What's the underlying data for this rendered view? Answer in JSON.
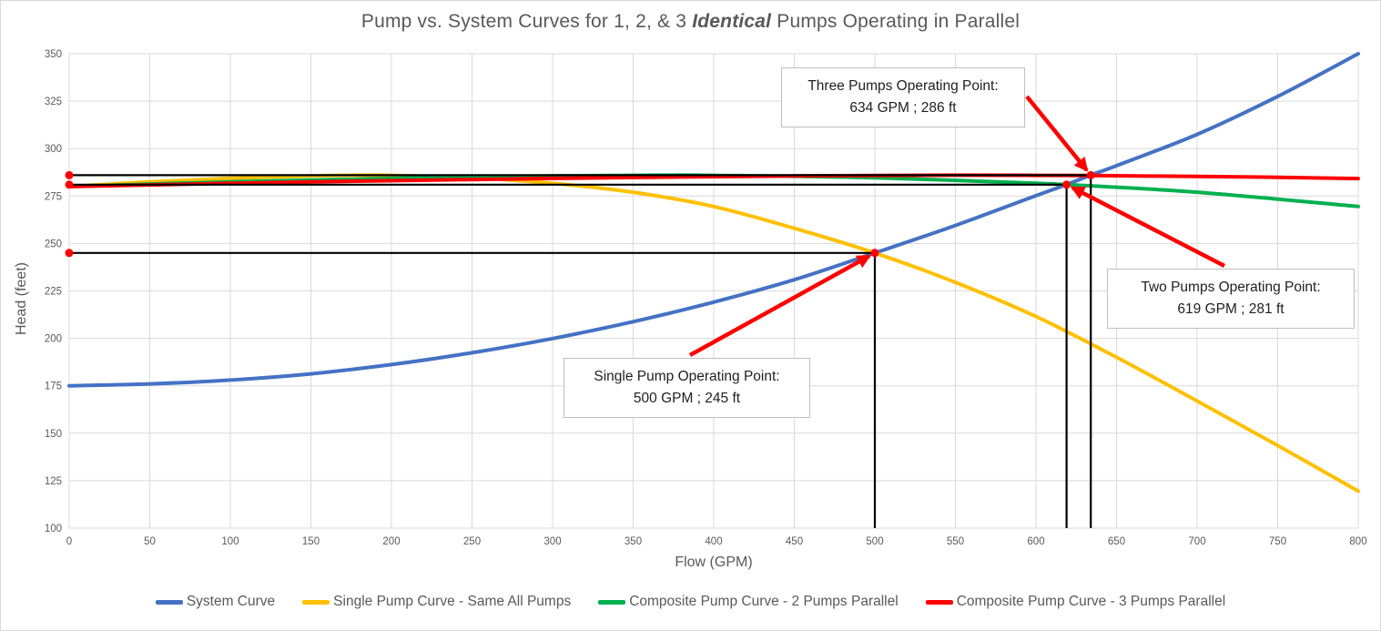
{
  "title": {
    "prefix": "Pump vs. System Curves for 1, 2, & 3 ",
    "emphasis": "Identical",
    "suffix": " Pumps Operating in Parallel"
  },
  "colors": {
    "system_curve": "#4472C4",
    "single_pump_curve": "#FFC000",
    "two_pump_curve": "#00B050",
    "three_pump_curve": "#FF0000",
    "gridline": "#D9D9D9",
    "axis_text": "#595959",
    "reference_line": "#000000",
    "marker_and_arrow": "#FF0000"
  },
  "chart_data": {
    "type": "line",
    "title": "Pump vs. System Curves for 1, 2, & 3 Identical Pumps Operating in Parallel",
    "xlabel": "Flow (GPM)",
    "ylabel": "Head (feet)",
    "xlim": [
      0,
      800
    ],
    "ylim": [
      100,
      350
    ],
    "grid": true,
    "legend_position": "bottom",
    "xticks": [
      0,
      50,
      100,
      150,
      200,
      250,
      300,
      350,
      400,
      450,
      500,
      550,
      600,
      650,
      700,
      750,
      800
    ],
    "yticks": [
      100,
      125,
      150,
      175,
      200,
      225,
      250,
      275,
      300,
      325,
      350
    ],
    "series": [
      {
        "name": "System Curve",
        "color": "#4472C4",
        "x": [
          0,
          50,
          100,
          150,
          200,
          250,
          300,
          350,
          400,
          450,
          500,
          550,
          600,
          619,
          634,
          650,
          700,
          750,
          800
        ],
        "y": [
          175,
          176,
          178,
          181.3,
          186.2,
          192.4,
          199.9,
          208.8,
          219.1,
          230.9,
          245,
          259.5,
          275.2,
          281,
          286,
          291,
          307.5,
          327.5,
          350
        ]
      },
      {
        "name": "Single Pump Curve - Same All Pumps",
        "color": "#FFC000",
        "x": [
          0,
          50,
          100,
          150,
          183,
          200,
          250,
          300,
          350,
          400,
          450,
          500,
          550,
          600,
          650,
          700,
          750,
          800
        ],
        "y": [
          280,
          282.5,
          284.3,
          285.6,
          286,
          285.9,
          284.6,
          281.7,
          277,
          269.5,
          258,
          245,
          229.5,
          211.5,
          190,
          167,
          143.5,
          119.5
        ]
      },
      {
        "name": "Composite Pump Curve - 2 Pumps Parallel",
        "color": "#00B050",
        "x": [
          0,
          100,
          200,
          300,
          366,
          400,
          500,
          600,
          619,
          700,
          800
        ],
        "y": [
          280,
          282.5,
          284.3,
          285.6,
          286,
          285.9,
          284.6,
          281.7,
          281,
          277,
          269.5
        ]
      },
      {
        "name": "Composite Pump Curve - 3 Pumps Parallel",
        "color": "#FF0000",
        "x": [
          0,
          150,
          300,
          450,
          549,
          600,
          634,
          700,
          750,
          800
        ],
        "y": [
          280,
          282.5,
          284.3,
          285.6,
          286,
          285.9,
          285.8,
          285.3,
          284.9,
          284.2
        ]
      }
    ],
    "operating_points": [
      {
        "id": "single",
        "label": "Single Pump Operating Point:",
        "value": "500 GPM ; 245 ft",
        "gpm": 500,
        "head": 245
      },
      {
        "id": "two",
        "label": "Two Pumps Operating Point:",
        "value": "619 GPM ; 281 ft",
        "gpm": 619,
        "head": 281
      },
      {
        "id": "three",
        "label": "Three Pumps Operating Point:",
        "value": "634 GPM ; 286 ft",
        "gpm": 634,
        "head": 286
      }
    ]
  }
}
